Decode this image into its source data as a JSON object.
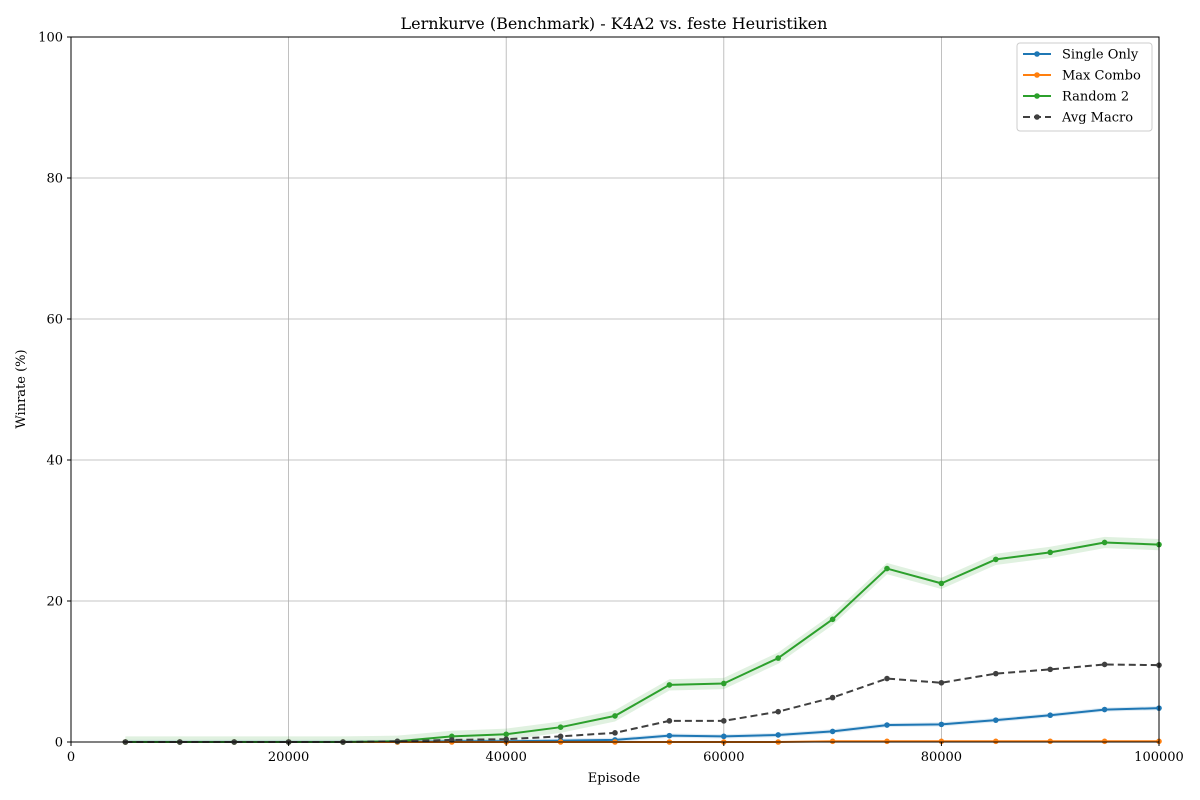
{
  "chart_data": {
    "type": "line",
    "title": "Lernkurve (Benchmark) - K4A2 vs. feste Heuristiken",
    "xlabel": "Episode",
    "ylabel": "Winrate (%)",
    "xlim": [
      0,
      100000
    ],
    "ylim": [
      0,
      100
    ],
    "xticks": [
      0,
      20000,
      40000,
      60000,
      80000,
      100000
    ],
    "yticks": [
      0,
      20,
      40,
      60,
      80,
      100
    ],
    "grid": true,
    "legend_position": "top-right",
    "x": [
      5000,
      10000,
      15000,
      20000,
      25000,
      30000,
      35000,
      40000,
      45000,
      50000,
      55000,
      60000,
      65000,
      70000,
      75000,
      80000,
      85000,
      90000,
      95000,
      100000
    ],
    "series": [
      {
        "name": "Single Only",
        "color": "#1f77b4",
        "style": "solid",
        "values": [
          0,
          0,
          0,
          0,
          0,
          0,
          0.1,
          0.1,
          0.2,
          0.3,
          0.9,
          0.8,
          1.0,
          1.5,
          2.4,
          2.5,
          3.1,
          3.8,
          4.6,
          4.8
        ],
        "band": 0.3
      },
      {
        "name": "Max Combo",
        "color": "#ff7f0e",
        "style": "solid",
        "values": [
          0,
          0,
          0,
          0,
          0,
          0,
          0,
          0,
          0,
          0,
          0,
          0,
          0,
          0.1,
          0.1,
          0.1,
          0.1,
          0.1,
          0.1,
          0.1
        ],
        "band": 0.05
      },
      {
        "name": "Random 2",
        "color": "#2ca02c",
        "style": "solid",
        "values": [
          0,
          0,
          0,
          0,
          0,
          0.1,
          0.8,
          1.1,
          2.1,
          3.7,
          8.1,
          8.3,
          11.9,
          17.4,
          24.6,
          22.5,
          25.9,
          26.9,
          28.3,
          28.0
        ],
        "band": 0.8
      },
      {
        "name": "Avg Macro",
        "color": "#404040",
        "style": "dashed",
        "values": [
          0,
          0,
          0,
          0,
          0,
          0.1,
          0.3,
          0.4,
          0.8,
          1.3,
          3.0,
          3.0,
          4.3,
          6.3,
          9.0,
          8.4,
          9.7,
          10.3,
          11.0,
          10.9
        ],
        "band": 0
      }
    ]
  }
}
